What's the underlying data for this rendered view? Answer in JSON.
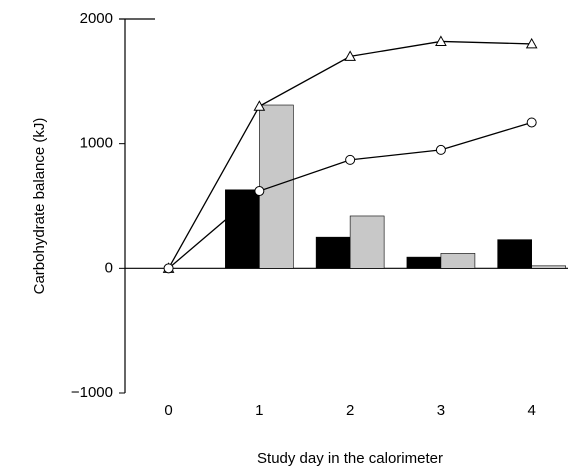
{
  "chart_data": {
    "type": "bar-line",
    "y_label": "Carbohydrate balance (kJ)",
    "x_label": "Study day in the calorimeter",
    "x": [
      0,
      1,
      2,
      3,
      4
    ],
    "series": [
      {
        "kind": "bar",
        "color": "#000000",
        "values": [
          null,
          630,
          250,
          90,
          230
        ]
      },
      {
        "kind": "bar",
        "color": "#c8c8c8",
        "values": [
          null,
          1310,
          420,
          120,
          20
        ]
      },
      {
        "kind": "line",
        "marker": "triangle",
        "color": "#000000",
        "values": [
          0,
          1300,
          1700,
          1820,
          1800
        ]
      },
      {
        "kind": "line",
        "marker": "circle",
        "color": "#000000",
        "values": [
          0,
          620,
          870,
          950,
          1170
        ]
      }
    ],
    "xlim": [
      -0.48,
      4.4
    ],
    "xticks": [
      0,
      1,
      2,
      3,
      4
    ],
    "ylim": [
      -1000,
      2000
    ],
    "yticks": [
      {
        "value": -1000,
        "label": "−1000"
      },
      0,
      1000,
      2000
    ]
  }
}
